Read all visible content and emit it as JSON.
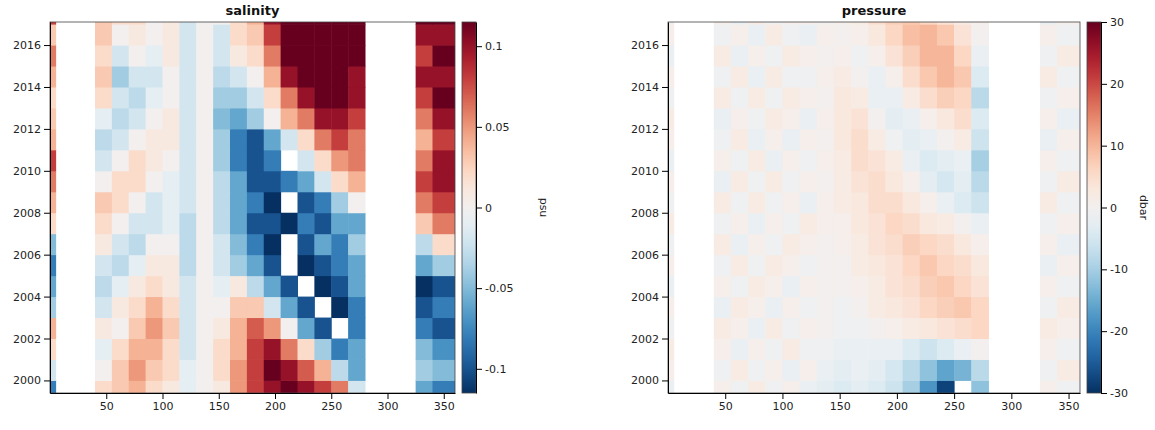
{
  "chart_data": [
    {
      "type": "heatmap",
      "title": "salinity",
      "x_bins": [
        0,
        5,
        40,
        55,
        70,
        85,
        100,
        115,
        130,
        145,
        160,
        175,
        190,
        205,
        220,
        235,
        250,
        265,
        280,
        325,
        340,
        360
      ],
      "y_bins": [
        1999,
        2000,
        2001,
        2002,
        2003,
        2004,
        2005,
        2006,
        2007,
        2008,
        2009,
        2010,
        2011,
        2012,
        2013,
        2014,
        2015,
        2016,
        2017,
        2018
      ],
      "xlim": [
        0,
        360
      ],
      "ylim": [
        1999.4,
        2017.1
      ],
      "xticks": [
        50,
        100,
        150,
        200,
        250,
        300,
        350
      ],
      "yticks": [
        2000,
        2002,
        2004,
        2006,
        2008,
        2010,
        2012,
        2014,
        2016
      ],
      "colorbar": {
        "label": "psu",
        "lim": [
          -0.115,
          0.115
        ],
        "ticks": [
          -0.1,
          -0.05,
          0,
          0.05,
          0.1
        ]
      },
      "values": [
        [
          -0.08,
          null,
          0.02,
          0.03,
          0.04,
          0.02,
          0.01,
          -0.01,
          0.0,
          0.01,
          0.05,
          0.08,
          0.1,
          0.12,
          0.1,
          0.08,
          0.06,
          -0.02,
          null,
          -0.06,
          -0.08
        ],
        [
          -0.02,
          null,
          0.0,
          0.03,
          0.05,
          0.03,
          0.02,
          -0.01,
          0.0,
          0.02,
          0.05,
          0.08,
          0.12,
          0.1,
          0.07,
          0.04,
          -0.03,
          -0.06,
          null,
          -0.04,
          -0.05
        ],
        [
          0.02,
          null,
          -0.01,
          0.02,
          0.04,
          0.04,
          0.02,
          -0.02,
          0.0,
          0.02,
          0.04,
          0.08,
          0.1,
          0.06,
          0.02,
          -0.04,
          -0.08,
          -0.06,
          null,
          -0.05,
          -0.07
        ],
        [
          0.04,
          null,
          0.01,
          0.0,
          0.03,
          0.05,
          0.03,
          -0.02,
          0.0,
          0.01,
          0.04,
          0.07,
          0.05,
          0.0,
          -0.06,
          -0.1,
          null,
          -0.08,
          null,
          -0.08,
          -0.1
        ],
        [
          -0.04,
          null,
          -0.02,
          0.01,
          0.02,
          0.04,
          0.02,
          -0.02,
          0.0,
          0.0,
          0.03,
          0.03,
          -0.02,
          -0.06,
          -0.1,
          null,
          -0.12,
          -0.08,
          null,
          -0.1,
          -0.08
        ],
        [
          -0.06,
          null,
          -0.03,
          -0.01,
          0.01,
          0.02,
          0.01,
          -0.02,
          0.0,
          -0.01,
          0.01,
          -0.03,
          -0.06,
          -0.1,
          null,
          -0.12,
          -0.1,
          -0.06,
          null,
          -0.12,
          -0.1
        ],
        [
          -0.08,
          null,
          -0.02,
          -0.03,
          -0.01,
          0.01,
          0.01,
          -0.03,
          0.0,
          -0.02,
          -0.04,
          -0.06,
          -0.1,
          null,
          -0.12,
          -0.1,
          -0.08,
          -0.06,
          null,
          -0.06,
          -0.04
        ],
        [
          -0.05,
          null,
          0.01,
          -0.02,
          -0.03,
          0.0,
          0.0,
          -0.03,
          0.0,
          -0.02,
          -0.05,
          -0.08,
          -0.12,
          null,
          -0.1,
          -0.06,
          -0.08,
          -0.04,
          null,
          -0.03,
          0.02
        ],
        [
          0.02,
          null,
          0.02,
          0.0,
          -0.02,
          -0.02,
          -0.01,
          -0.03,
          0.0,
          -0.03,
          -0.06,
          -0.1,
          -0.1,
          -0.12,
          -0.08,
          -0.1,
          -0.06,
          -0.06,
          null,
          0.03,
          0.06
        ],
        [
          0.04,
          null,
          0.03,
          0.02,
          0.0,
          -0.02,
          -0.01,
          -0.02,
          0.0,
          -0.03,
          -0.06,
          -0.08,
          -0.12,
          null,
          -0.1,
          -0.08,
          -0.04,
          0.0,
          null,
          0.06,
          0.08
        ],
        [
          0.06,
          null,
          0.0,
          0.02,
          0.02,
          0.0,
          -0.01,
          -0.02,
          0.0,
          -0.03,
          -0.06,
          -0.1,
          -0.1,
          -0.08,
          -0.06,
          -0.02,
          0.02,
          0.04,
          null,
          0.08,
          0.1
        ],
        [
          0.08,
          null,
          -0.02,
          0.0,
          0.02,
          0.01,
          0.0,
          -0.02,
          0.0,
          -0.04,
          -0.08,
          -0.1,
          -0.08,
          null,
          -0.02,
          0.02,
          0.05,
          0.06,
          null,
          0.06,
          0.1
        ],
        [
          0.04,
          null,
          -0.03,
          -0.02,
          0.0,
          0.01,
          0.01,
          -0.02,
          0.0,
          -0.04,
          -0.08,
          -0.1,
          -0.06,
          -0.02,
          0.02,
          0.06,
          0.08,
          0.06,
          null,
          0.04,
          0.08
        ],
        [
          0.03,
          null,
          -0.01,
          -0.03,
          -0.02,
          0.0,
          0.01,
          -0.02,
          0.0,
          -0.05,
          -0.06,
          -0.04,
          0.0,
          0.04,
          0.06,
          0.1,
          0.1,
          0.08,
          null,
          0.06,
          0.1
        ],
        [
          0.02,
          null,
          0.02,
          -0.02,
          -0.03,
          -0.01,
          0.0,
          -0.02,
          0.0,
          -0.04,
          -0.04,
          -0.02,
          0.02,
          0.06,
          0.1,
          0.12,
          0.12,
          0.1,
          null,
          0.08,
          0.12
        ],
        [
          0.04,
          null,
          0.03,
          -0.04,
          -0.02,
          -0.02,
          0.0,
          -0.02,
          0.0,
          -0.03,
          -0.02,
          0.0,
          0.04,
          0.1,
          0.12,
          0.12,
          0.12,
          0.1,
          null,
          0.1,
          0.1
        ],
        [
          0.06,
          null,
          0.02,
          -0.02,
          0.0,
          -0.01,
          0.01,
          -0.02,
          0.0,
          -0.02,
          0.01,
          0.02,
          0.06,
          0.12,
          0.12,
          0.12,
          0.12,
          0.12,
          null,
          0.08,
          0.12
        ],
        [
          0.03,
          null,
          0.03,
          0.0,
          0.01,
          0.0,
          0.01,
          -0.02,
          0.0,
          -0.02,
          0.02,
          0.03,
          0.08,
          0.12,
          0.12,
          0.12,
          0.12,
          0.12,
          null,
          0.1,
          0.1
        ],
        [
          0.08,
          null,
          0.03,
          0.02,
          0.02,
          0.0,
          0.01,
          -0.02,
          0.0,
          0.0,
          0.02,
          0.04,
          0.1,
          0.12,
          0.12,
          0.12,
          0.12,
          0.12,
          null,
          0.12,
          0.12
        ]
      ]
    },
    {
      "type": "heatmap",
      "title": "pressure",
      "x_bins": [
        0,
        5,
        40,
        55,
        70,
        85,
        100,
        115,
        130,
        145,
        160,
        175,
        190,
        205,
        220,
        235,
        250,
        265,
        280,
        325,
        340,
        360
      ],
      "y_bins": [
        1999,
        2000,
        2001,
        2002,
        2003,
        2004,
        2005,
        2006,
        2007,
        2008,
        2009,
        2010,
        2011,
        2012,
        2013,
        2014,
        2015,
        2016,
        2017,
        2018
      ],
      "xlim": [
        0,
        360
      ],
      "ylim": [
        1999.4,
        2017.1
      ],
      "xticks": [
        50,
        100,
        150,
        200,
        250,
        300,
        350
      ],
      "yticks": [
        2000,
        2002,
        2004,
        2006,
        2008,
        2010,
        2012,
        2014,
        2016
      ],
      "colorbar": {
        "label": "dbar",
        "lim": [
          -30,
          30
        ],
        "ticks": [
          -30,
          -20,
          -10,
          0,
          10,
          20,
          30
        ]
      },
      "values": [
        [
          -2,
          null,
          1,
          -1,
          2,
          -1,
          1,
          -2,
          -3,
          -4,
          -3,
          -4,
          -6,
          -10,
          -18,
          -28,
          null,
          -12,
          null,
          1,
          -1
        ],
        [
          1,
          null,
          -1,
          2,
          -1,
          1,
          -2,
          1,
          -2,
          -3,
          -2,
          -3,
          -5,
          -8,
          -12,
          -16,
          -14,
          -8,
          null,
          -1,
          2
        ],
        [
          2,
          null,
          1,
          -2,
          1,
          -1,
          2,
          -1,
          -1,
          -2,
          -2,
          -2,
          -2,
          -4,
          -6,
          -4,
          -2,
          0,
          null,
          1,
          -1
        ],
        [
          -1,
          null,
          2,
          1,
          -2,
          2,
          -1,
          1,
          0,
          -1,
          -1,
          0,
          1,
          2,
          3,
          4,
          5,
          6,
          null,
          2,
          1
        ],
        [
          1,
          null,
          -2,
          2,
          1,
          -2,
          1,
          -1,
          0,
          -1,
          0,
          2,
          3,
          4,
          6,
          7,
          8,
          6,
          null,
          -1,
          2
        ],
        [
          -2,
          null,
          1,
          -1,
          2,
          1,
          -2,
          1,
          0,
          0,
          1,
          2,
          4,
          5,
          7,
          8,
          6,
          4,
          null,
          1,
          -1
        ],
        [
          1,
          null,
          -1,
          2,
          -1,
          2,
          1,
          -1,
          0,
          0,
          2,
          3,
          4,
          6,
          8,
          6,
          5,
          3,
          null,
          -2,
          1
        ],
        [
          -1,
          null,
          2,
          -2,
          1,
          -1,
          2,
          1,
          0,
          1,
          2,
          4,
          5,
          7,
          6,
          5,
          3,
          1,
          null,
          1,
          -2
        ],
        [
          2,
          null,
          -1,
          1,
          -2,
          1,
          -1,
          2,
          1,
          1,
          3,
          4,
          6,
          5,
          3,
          2,
          0,
          -2,
          null,
          -1,
          1
        ],
        [
          -1,
          null,
          2,
          -1,
          2,
          -1,
          1,
          -2,
          1,
          2,
          3,
          5,
          5,
          3,
          1,
          -2,
          -4,
          -6,
          null,
          2,
          -1
        ],
        [
          1,
          null,
          -2,
          2,
          -1,
          2,
          -1,
          1,
          0,
          2,
          4,
          5,
          3,
          1,
          -3,
          -5,
          -3,
          -8,
          null,
          -1,
          2
        ],
        [
          -2,
          null,
          1,
          -1,
          2,
          -2,
          1,
          -1,
          1,
          2,
          5,
          4,
          2,
          -2,
          -4,
          -3,
          -2,
          -10,
          null,
          1,
          -1
        ],
        [
          1,
          null,
          -1,
          2,
          -2,
          1,
          -2,
          1,
          0,
          3,
          5,
          2,
          -1,
          -3,
          -2,
          0,
          2,
          -6,
          null,
          -2,
          1
        ],
        [
          2,
          null,
          -2,
          1,
          -1,
          2,
          1,
          -2,
          1,
          3,
          4,
          0,
          -3,
          -2,
          1,
          3,
          5,
          -4,
          null,
          1,
          -2
        ],
        [
          -1,
          null,
          2,
          -1,
          2,
          -1,
          2,
          1,
          0,
          3,
          2,
          -2,
          -2,
          2,
          5,
          7,
          6,
          -8,
          null,
          -1,
          1
        ],
        [
          1,
          null,
          -1,
          2,
          -2,
          2,
          -1,
          -1,
          1,
          2,
          0,
          -2,
          1,
          5,
          8,
          10,
          8,
          -4,
          null,
          2,
          -1
        ],
        [
          -2,
          null,
          2,
          -2,
          1,
          -1,
          2,
          1,
          0,
          1,
          -1,
          1,
          4,
          7,
          10,
          10,
          6,
          -2,
          null,
          -1,
          2
        ],
        [
          1,
          null,
          -1,
          1,
          -2,
          2,
          -1,
          -2,
          1,
          0,
          1,
          3,
          6,
          9,
          10,
          8,
          4,
          0,
          null,
          1,
          -1
        ],
        [
          -1,
          null,
          1,
          -2,
          2,
          -1,
          1,
          1,
          0,
          1,
          2,
          5,
          7,
          8,
          6,
          4,
          2,
          1,
          null,
          -2,
          1
        ]
      ]
    }
  ]
}
